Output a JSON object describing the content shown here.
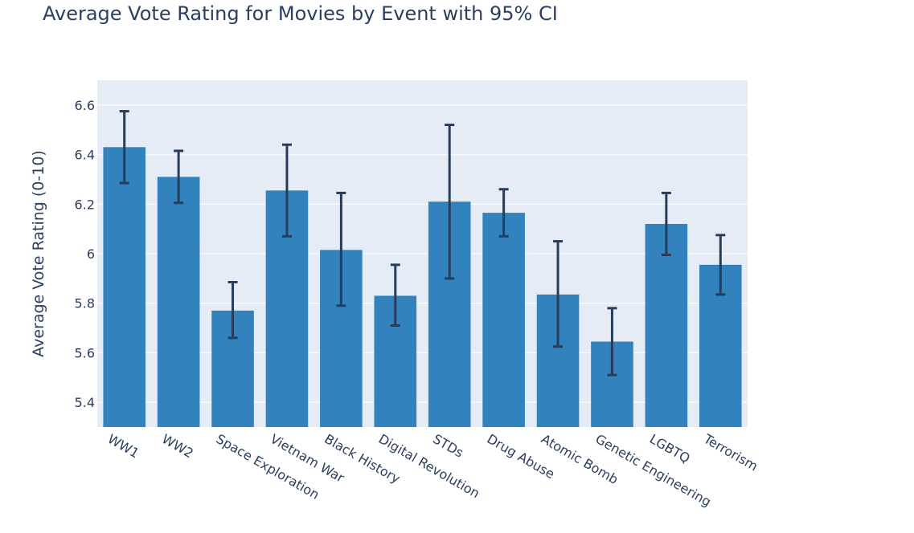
{
  "chart_data": {
    "type": "bar",
    "title": "Average Vote Rating for Movies by Event with 95% CI",
    "ylabel": "Average Vote Rating (0-10)",
    "xlabel": "",
    "ylim": [
      5.3,
      6.7
    ],
    "yticks": [
      5.4,
      5.6,
      5.8,
      6.0,
      6.2,
      6.4,
      6.6
    ],
    "ytick_labels": [
      "5.4",
      "5.6",
      "5.8",
      "6",
      "6.2",
      "6.4",
      "6.6"
    ],
    "grid": true,
    "categories": [
      "WW1",
      "WW2",
      "Space Exploration",
      "Vietnam War",
      "Black History",
      "Digital Revolution",
      "STDs",
      "Drug Abuse",
      "Atomic Bomb",
      "Genetic Engineering",
      "LGBTQ",
      "Terrorism"
    ],
    "values": [
      6.43,
      6.31,
      5.77,
      6.255,
      6.015,
      5.83,
      6.21,
      6.165,
      5.835,
      5.645,
      6.12,
      5.955
    ],
    "ci_upper": [
      6.575,
      6.415,
      5.885,
      6.44,
      6.245,
      5.955,
      6.52,
      6.26,
      6.05,
      5.78,
      6.245,
      6.075
    ],
    "ci_lower": [
      6.285,
      6.205,
      5.66,
      6.07,
      5.79,
      5.71,
      5.9,
      6.07,
      5.625,
      5.51,
      5.995,
      5.835
    ],
    "colors": {
      "bar": "#3182bd",
      "error_bar": "#283c5c",
      "plot_bg": "#e5ecf6",
      "grid": "#ffffff",
      "text": "#2a3f5f"
    }
  }
}
